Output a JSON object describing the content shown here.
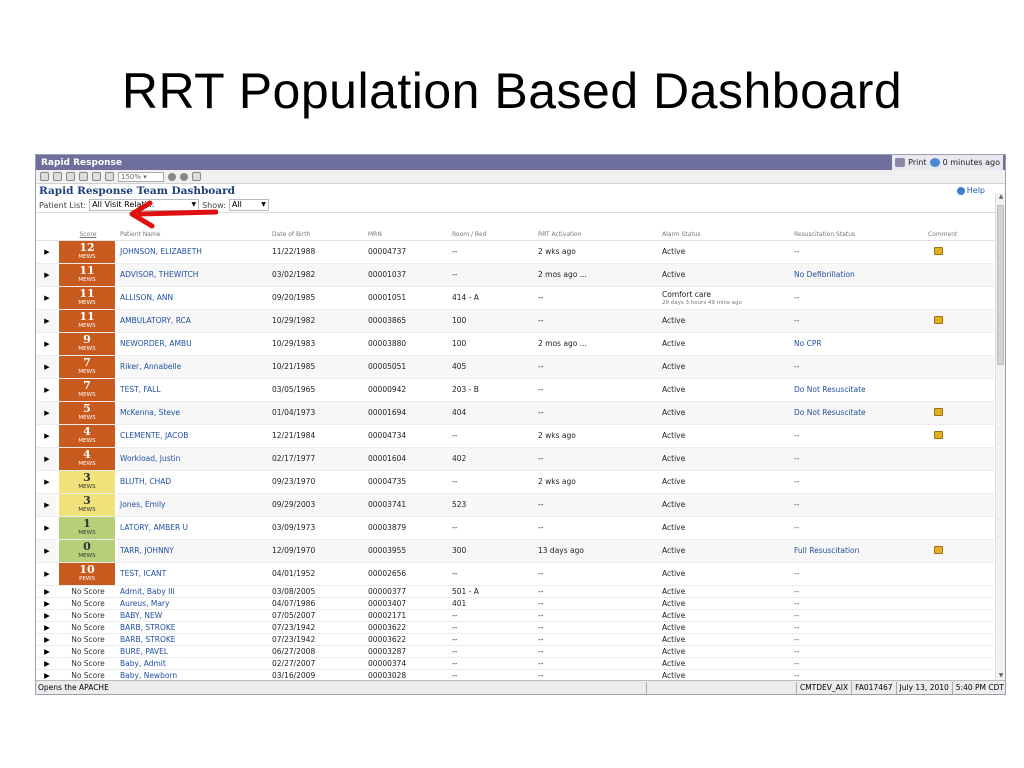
{
  "slide_title": "RRT Population Based Dashboard",
  "app": {
    "window_title": "Rapid Response",
    "print_label": "Print",
    "refresh_label": "0 minutes ago",
    "zoom": "150%",
    "dashboard_title": "Rapid Response Team Dashboard",
    "help_label": "Help",
    "patient_list_label": "Patient List:",
    "patient_list_value": "All Visit Relati...",
    "show_label": "Show:",
    "show_value": "All"
  },
  "columns": [
    "Score",
    "Patient Name",
    "Date of Birth",
    "MRN",
    "Room / Bed",
    "RRT Activation",
    "Alarm Status",
    "Resuscitation Status",
    "Comment"
  ],
  "rows": [
    {
      "score": "12",
      "unit": "MEWS",
      "color": "orange",
      "name": "JOHNSON, ELIZABETH",
      "dob": "11/22/1988",
      "mrn": "00004737",
      "room": "--",
      "rrt": "2 wks ago",
      "alarm": "Active",
      "resus": "--",
      "comment": true
    },
    {
      "score": "11",
      "unit": "MEWS",
      "color": "orange",
      "name": "ADVISOR, THEWITCH",
      "dob": "03/02/1982",
      "mrn": "00001037",
      "room": "--",
      "rrt": "2 mos ago ...",
      "alarm": "Active",
      "resus": "No Defibrillation",
      "comment": false
    },
    {
      "score": "11",
      "unit": "MEWS",
      "color": "orange",
      "name": "ALLISON, ANN",
      "dob": "09/20/1985",
      "mrn": "00001051",
      "room": "414 - A",
      "rrt": "--",
      "alarm": "Comfort care",
      "alarm_sub": "29 days 3 hours 49 mins ago",
      "resus": "--",
      "comment": false
    },
    {
      "score": "11",
      "unit": "MEWS",
      "color": "orange",
      "name": "AMBULATORY, RCA",
      "dob": "10/29/1982",
      "mrn": "00003865",
      "room": "100",
      "rrt": "--",
      "alarm": "Active",
      "resus": "--",
      "comment": true
    },
    {
      "score": "9",
      "unit": "MEWS",
      "color": "orange",
      "name": "NEWORDER, AMBU",
      "dob": "10/29/1983",
      "mrn": "00003880",
      "room": "100",
      "rrt": "2 mos ago ...",
      "alarm": "Active",
      "resus": "No CPR",
      "comment": false
    },
    {
      "score": "7",
      "unit": "MEWS",
      "color": "orange",
      "name": "Riker, Annabelle",
      "dob": "10/21/1985",
      "mrn": "00005051",
      "room": "405",
      "rrt": "--",
      "alarm": "Active",
      "resus": "--",
      "comment": false
    },
    {
      "score": "7",
      "unit": "MEWS",
      "color": "orange",
      "name": "TEST, FALL",
      "dob": "03/05/1965",
      "mrn": "00000942",
      "room": "203 - B",
      "rrt": "--",
      "alarm": "Active",
      "resus": "Do Not Resuscitate",
      "comment": false
    },
    {
      "score": "5",
      "unit": "MEWS",
      "color": "orange",
      "name": "McKenna, Steve",
      "dob": "01/04/1973",
      "mrn": "00001694",
      "room": "404",
      "rrt": "--",
      "alarm": "Active",
      "resus": "Do Not Resuscitate",
      "comment": true
    },
    {
      "score": "4",
      "unit": "MEWS",
      "color": "orange",
      "name": "CLEMENTE, JACOB",
      "dob": "12/21/1984",
      "mrn": "00004734",
      "room": "--",
      "rrt": "2 wks ago",
      "alarm": "Active",
      "resus": "--",
      "comment": true
    },
    {
      "score": "4",
      "unit": "MEWS",
      "color": "orange",
      "name": "Workload, Justin",
      "dob": "02/17/1977",
      "mrn": "00001604",
      "room": "402",
      "rrt": "--",
      "alarm": "Active",
      "resus": "--",
      "comment": false
    },
    {
      "score": "3",
      "unit": "MEWS",
      "color": "yellow",
      "name": "BLUTH, CHAD",
      "dob": "09/23/1970",
      "mrn": "00004735",
      "room": "--",
      "rrt": "2 wks ago",
      "alarm": "Active",
      "resus": "--",
      "comment": false
    },
    {
      "score": "3",
      "unit": "MEWS",
      "color": "yellow",
      "name": "Jones, Emily",
      "dob": "09/29/2003",
      "mrn": "00003741",
      "room": "523",
      "rrt": "--",
      "alarm": "Active",
      "resus": "--",
      "comment": false
    },
    {
      "score": "1",
      "unit": "MEWS",
      "color": "green",
      "name": "LATORY, AMBER U",
      "dob": "03/09/1973",
      "mrn": "00003879",
      "room": "--",
      "rrt": "--",
      "alarm": "Active",
      "resus": "--",
      "comment": false
    },
    {
      "score": "0",
      "unit": "MEWS",
      "color": "green",
      "name": "TARR, JOHNNY",
      "dob": "12/09/1970",
      "mrn": "00003955",
      "room": "300",
      "rrt": "13 days ago",
      "alarm": "Active",
      "resus": "Full Resuscitation",
      "comment": true
    },
    {
      "score": "10",
      "unit": "PEWS",
      "color": "orange",
      "name": "TEST, ICANT",
      "dob": "04/01/1952",
      "mrn": "00002656",
      "room": "--",
      "rrt": "--",
      "alarm": "Active",
      "resus": "--",
      "comment": false
    },
    {
      "score": "No Score",
      "small": true,
      "name": "Admit, Baby III",
      "dob": "03/08/2005",
      "mrn": "00000377",
      "room": "501 - A",
      "rrt": "--",
      "alarm": "Active",
      "resus": "--"
    },
    {
      "score": "No Score",
      "small": true,
      "name": "Aureus, Mary",
      "dob": "04/07/1986",
      "mrn": "00003407",
      "room": "401",
      "rrt": "--",
      "alarm": "Active",
      "resus": "--"
    },
    {
      "score": "No Score",
      "small": true,
      "name": "BABY, NEW",
      "dob": "07/05/2007",
      "mrn": "00002171",
      "room": "--",
      "rrt": "--",
      "alarm": "Active",
      "resus": "--"
    },
    {
      "score": "No Score",
      "small": true,
      "name": "BARB, STROKE",
      "dob": "07/23/1942",
      "mrn": "00003622",
      "room": "--",
      "rrt": "--",
      "alarm": "Active",
      "resus": "--"
    },
    {
      "score": "No Score",
      "small": true,
      "name": "BARB, STROKE",
      "dob": "07/23/1942",
      "mrn": "00003622",
      "room": "--",
      "rrt": "--",
      "alarm": "Active",
      "resus": "--"
    },
    {
      "score": "No Score",
      "small": true,
      "name": "BURE, PAVEL",
      "dob": "06/27/2008",
      "mrn": "00003287",
      "room": "--",
      "rrt": "--",
      "alarm": "Active",
      "resus": "--"
    },
    {
      "score": "No Score",
      "small": true,
      "name": "Baby, Admit",
      "dob": "02/27/2007",
      "mrn": "00000374",
      "room": "--",
      "rrt": "--",
      "alarm": "Active",
      "resus": "--"
    },
    {
      "score": "No Score",
      "small": true,
      "name": "Baby, Newborn",
      "dob": "03/16/2009",
      "mrn": "00003028",
      "room": "--",
      "rrt": "--",
      "alarm": "Active",
      "resus": "--"
    }
  ],
  "statusbar": {
    "left": "Opens the APACHE",
    "env": "CMTDEV_AIX",
    "id": "FA017467",
    "date": "July 13, 2010",
    "time": "5:40 PM CDT"
  },
  "colors": {
    "titlebar": "#6e6f9c",
    "score_high": "#c85a1e",
    "score_mid": "#f1e27a",
    "score_low": "#b8cf7a",
    "link": "#2050a0",
    "arrow": "#e01010"
  }
}
